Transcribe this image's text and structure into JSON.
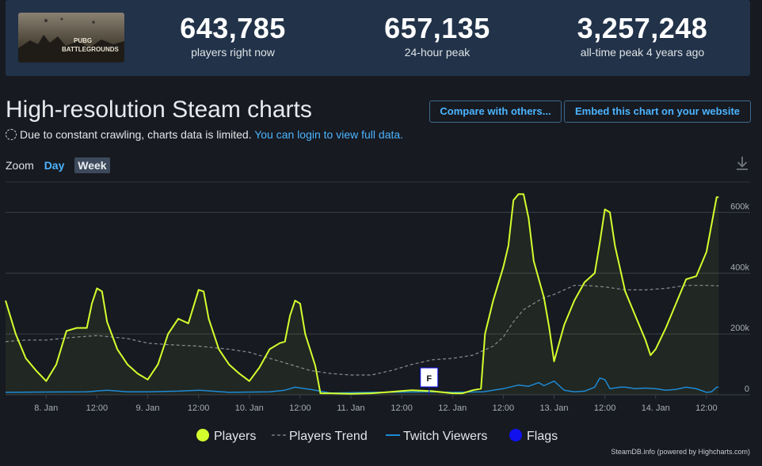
{
  "stats": {
    "game_logo_line1": "PUBG",
    "game_logo_line2": "BATTLEGROUNDS",
    "items": [
      {
        "value": "643,785",
        "label": "players right now"
      },
      {
        "value": "657,135",
        "label": "24-hour peak"
      },
      {
        "value": "3,257,248",
        "label": "all-time peak 4 years ago"
      }
    ]
  },
  "page": {
    "title": "High-resolution Steam charts",
    "notice_text": "Due to constant crawling, charts data is limited.",
    "notice_link": "You can login to view full data.",
    "compare_button": "Compare with others...",
    "embed_button": "Embed this chart on your website",
    "zoom_label": "Zoom",
    "zoom_options": [
      "Day",
      "Week"
    ],
    "zoom_active": "Week",
    "credit": "SteamDB.info (powered by Highcharts.com)"
  },
  "colors": {
    "players": "#d4ff2e",
    "trend": "#8a8f94",
    "twitch": "#1d8ad6",
    "flags": "#1111ee",
    "accent": "#4cb4ff"
  },
  "chart_data": {
    "type": "line",
    "x_unit": "days (Jan)",
    "xlim": [
      7.6,
      14.93
    ],
    "ylim": [
      0,
      700000
    ],
    "y_ticks": [
      0,
      200000,
      400000,
      600000
    ],
    "y_tick_labels": [
      "0",
      "200k",
      "400k",
      "600k"
    ],
    "x_ticks": [
      8,
      8.5,
      9,
      9.5,
      10,
      10.5,
      11,
      11.5,
      12,
      12.5,
      13,
      13.5,
      14,
      14.5
    ],
    "x_tick_labels": [
      "8. Jan",
      "12:00",
      "9. Jan",
      "12:00",
      "10. Jan",
      "12:00",
      "11. Jan",
      "12:00",
      "12. Jan",
      "12:00",
      "13. Jan",
      "12:00",
      "14. Jan",
      "12:00"
    ],
    "series": [
      {
        "name": "Players",
        "points": [
          [
            7.6,
            310000
          ],
          [
            7.7,
            200000
          ],
          [
            7.8,
            120000
          ],
          [
            7.9,
            80000
          ],
          [
            8.0,
            45000
          ],
          [
            8.1,
            100000
          ],
          [
            8.2,
            210000
          ],
          [
            8.3,
            220000
          ],
          [
            8.4,
            220000
          ],
          [
            8.45,
            300000
          ],
          [
            8.5,
            350000
          ],
          [
            8.55,
            340000
          ],
          [
            8.6,
            240000
          ],
          [
            8.7,
            150000
          ],
          [
            8.8,
            100000
          ],
          [
            8.9,
            70000
          ],
          [
            9.0,
            50000
          ],
          [
            9.1,
            100000
          ],
          [
            9.2,
            200000
          ],
          [
            9.3,
            250000
          ],
          [
            9.4,
            235000
          ],
          [
            9.5,
            345000
          ],
          [
            9.55,
            340000
          ],
          [
            9.6,
            250000
          ],
          [
            9.7,
            150000
          ],
          [
            9.8,
            100000
          ],
          [
            9.9,
            70000
          ],
          [
            10.0,
            45000
          ],
          [
            10.1,
            90000
          ],
          [
            10.2,
            150000
          ],
          [
            10.3,
            170000
          ],
          [
            10.35,
            175000
          ],
          [
            10.4,
            260000
          ],
          [
            10.45,
            310000
          ],
          [
            10.5,
            300000
          ],
          [
            10.55,
            200000
          ],
          [
            10.65,
            95000
          ],
          [
            10.7,
            5000
          ],
          [
            10.8,
            5000
          ],
          [
            11.0,
            3000
          ],
          [
            11.2,
            5000
          ],
          [
            11.4,
            10000
          ],
          [
            11.6,
            15000
          ],
          [
            11.8,
            12000
          ],
          [
            12.0,
            5000
          ],
          [
            12.1,
            5000
          ],
          [
            12.2,
            15000
          ],
          [
            12.28,
            20000
          ],
          [
            12.32,
            200000
          ],
          [
            12.4,
            310000
          ],
          [
            12.5,
            420000
          ],
          [
            12.55,
            490000
          ],
          [
            12.6,
            640000
          ],
          [
            12.65,
            660000
          ],
          [
            12.7,
            660000
          ],
          [
            12.75,
            580000
          ],
          [
            12.8,
            440000
          ],
          [
            12.9,
            320000
          ],
          [
            12.95,
            225000
          ],
          [
            13.0,
            110000
          ],
          [
            13.1,
            230000
          ],
          [
            13.2,
            310000
          ],
          [
            13.3,
            370000
          ],
          [
            13.4,
            400000
          ],
          [
            13.45,
            500000
          ],
          [
            13.5,
            610000
          ],
          [
            13.55,
            600000
          ],
          [
            13.6,
            490000
          ],
          [
            13.7,
            340000
          ],
          [
            13.8,
            260000
          ],
          [
            13.9,
            180000
          ],
          [
            13.95,
            130000
          ],
          [
            14.0,
            150000
          ],
          [
            14.1,
            220000
          ],
          [
            14.2,
            300000
          ],
          [
            14.3,
            380000
          ],
          [
            14.4,
            390000
          ],
          [
            14.5,
            470000
          ],
          [
            14.6,
            650000
          ],
          [
            14.62,
            650000
          ]
        ]
      },
      {
        "name": "Players Trend",
        "points": [
          [
            7.6,
            175000
          ],
          [
            7.8,
            180000
          ],
          [
            8.0,
            180000
          ],
          [
            8.3,
            190000
          ],
          [
            8.5,
            195000
          ],
          [
            8.8,
            185000
          ],
          [
            9.0,
            170000
          ],
          [
            9.2,
            165000
          ],
          [
            9.5,
            160000
          ],
          [
            9.8,
            150000
          ],
          [
            10.0,
            140000
          ],
          [
            10.2,
            120000
          ],
          [
            10.4,
            100000
          ],
          [
            10.6,
            80000
          ],
          [
            10.8,
            70000
          ],
          [
            11.0,
            65000
          ],
          [
            11.2,
            65000
          ],
          [
            11.4,
            80000
          ],
          [
            11.6,
            100000
          ],
          [
            11.8,
            115000
          ],
          [
            12.0,
            120000
          ],
          [
            12.2,
            130000
          ],
          [
            12.4,
            160000
          ],
          [
            12.5,
            190000
          ],
          [
            12.6,
            240000
          ],
          [
            12.7,
            280000
          ],
          [
            12.8,
            300000
          ],
          [
            12.9,
            320000
          ],
          [
            13.0,
            330000
          ],
          [
            13.1,
            345000
          ],
          [
            13.2,
            360000
          ],
          [
            13.3,
            360000
          ],
          [
            13.5,
            355000
          ],
          [
            13.7,
            345000
          ],
          [
            13.9,
            345000
          ],
          [
            14.1,
            350000
          ],
          [
            14.3,
            360000
          ],
          [
            14.5,
            360000
          ],
          [
            14.62,
            358000
          ]
        ]
      },
      {
        "name": "Twitch Viewers",
        "points": [
          [
            7.6,
            8000
          ],
          [
            8.0,
            9000
          ],
          [
            8.4,
            10000
          ],
          [
            8.6,
            15000
          ],
          [
            8.8,
            10000
          ],
          [
            9.0,
            10000
          ],
          [
            9.3,
            12000
          ],
          [
            9.5,
            15000
          ],
          [
            9.8,
            8000
          ],
          [
            10.2,
            10000
          ],
          [
            10.35,
            15000
          ],
          [
            10.45,
            25000
          ],
          [
            10.6,
            18000
          ],
          [
            10.8,
            6000
          ],
          [
            11.2,
            8000
          ],
          [
            11.6,
            9000
          ],
          [
            11.8,
            10000
          ],
          [
            12.0,
            8000
          ],
          [
            12.3,
            10000
          ],
          [
            12.5,
            20000
          ],
          [
            12.65,
            32000
          ],
          [
            12.75,
            28000
          ],
          [
            12.85,
            40000
          ],
          [
            12.9,
            30000
          ],
          [
            13.0,
            45000
          ],
          [
            13.05,
            30000
          ],
          [
            13.1,
            15000
          ],
          [
            13.2,
            10000
          ],
          [
            13.3,
            12000
          ],
          [
            13.4,
            25000
          ],
          [
            13.45,
            55000
          ],
          [
            13.5,
            50000
          ],
          [
            13.55,
            20000
          ],
          [
            13.65,
            25000
          ],
          [
            13.7,
            25000
          ],
          [
            13.8,
            20000
          ],
          [
            13.9,
            22000
          ],
          [
            14.0,
            20000
          ],
          [
            14.1,
            15000
          ],
          [
            14.2,
            18000
          ],
          [
            14.3,
            25000
          ],
          [
            14.4,
            20000
          ],
          [
            14.5,
            8000
          ],
          [
            14.55,
            10000
          ],
          [
            14.6,
            25000
          ],
          [
            14.62,
            25000
          ]
        ]
      }
    ],
    "flags": [
      {
        "x": 11.77,
        "label": "F"
      }
    ],
    "legend": [
      "Players",
      "Players Trend",
      "Twitch Viewers",
      "Flags"
    ],
    "legend_position": "bottom-center"
  }
}
